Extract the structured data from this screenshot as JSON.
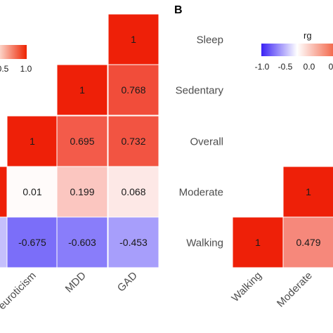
{
  "chart_data": [
    {
      "panel": "",
      "type": "heatmap",
      "title": "",
      "row_labels_partial": [],
      "columns": [
        "euroticism",
        "MDD",
        "GAD"
      ],
      "cells": [
        {
          "row": 0,
          "col": "GAD",
          "value": 1,
          "label": "1"
        },
        {
          "row": 1,
          "col": "MDD",
          "value": 1,
          "label": "1"
        },
        {
          "row": 1,
          "col": "GAD",
          "value": 0.768,
          "label": "0.768"
        },
        {
          "row": 2,
          "col": "euroticism",
          "value": 1,
          "label": "1"
        },
        {
          "row": 2,
          "col": "MDD",
          "value": 0.695,
          "label": "0.695"
        },
        {
          "row": 2,
          "col": "GAD",
          "value": 0.732,
          "label": "0.732"
        },
        {
          "row": 3,
          "col": "partial",
          "value": 1,
          "label": ""
        },
        {
          "row": 3,
          "col": "euroticism",
          "value": 0.01,
          "label": "0.01"
        },
        {
          "row": 3,
          "col": "MDD",
          "value": 0.199,
          "label": "0.199"
        },
        {
          "row": 3,
          "col": "GAD",
          "value": 0.068,
          "label": "0.068"
        },
        {
          "row": 4,
          "col": "partial",
          "value": -0.3,
          "label": ""
        },
        {
          "row": 4,
          "col": "euroticism",
          "value": -0.675,
          "label": "-0.675"
        },
        {
          "row": 4,
          "col": "MDD",
          "value": -0.603,
          "label": "-0.603"
        },
        {
          "row": 4,
          "col": "GAD",
          "value": -0.453,
          "label": "-0.453"
        }
      ],
      "legend": {
        "ticks": [
          "0.5",
          "1.0"
        ],
        "scale": "diverging blue-white-red",
        "range": [
          -1,
          1
        ]
      }
    },
    {
      "panel": "B",
      "type": "heatmap",
      "title": "",
      "rows": [
        "Sleep",
        "Sedentary",
        "Overall",
        "Moderate",
        "Walking"
      ],
      "columns": [
        "Walking",
        "Moderate"
      ],
      "cells": [
        {
          "row": "Moderate",
          "col": "Moderate",
          "value": 1,
          "label": "1"
        },
        {
          "row": "Walking",
          "col": "Walking",
          "value": 1,
          "label": "1"
        },
        {
          "row": "Walking",
          "col": "Moderate",
          "value": 0.479,
          "label": "0.479"
        }
      ],
      "legend": {
        "title": "rg",
        "ticks": [
          "-1.0",
          "-0.5",
          "0.0",
          "0"
        ],
        "scale": "diverging blue-white-red",
        "range": [
          -1,
          1
        ]
      }
    }
  ],
  "panel_b_letter": "B",
  "legend_a": {
    "tick_1": "0.5",
    "tick_2": "1.0"
  },
  "legend_b": {
    "title": "rg",
    "tick_1": "-1.0",
    "tick_2": "-0.5",
    "tick_3": "0.0",
    "tick_4": "0"
  },
  "rows_b": [
    "Sleep",
    "Sedentary",
    "Overall",
    "Moderate",
    "Walking"
  ],
  "cols_a": [
    "euroticism",
    "MDD",
    "GAD"
  ],
  "cols_b": [
    "Walking",
    "Moderate"
  ]
}
